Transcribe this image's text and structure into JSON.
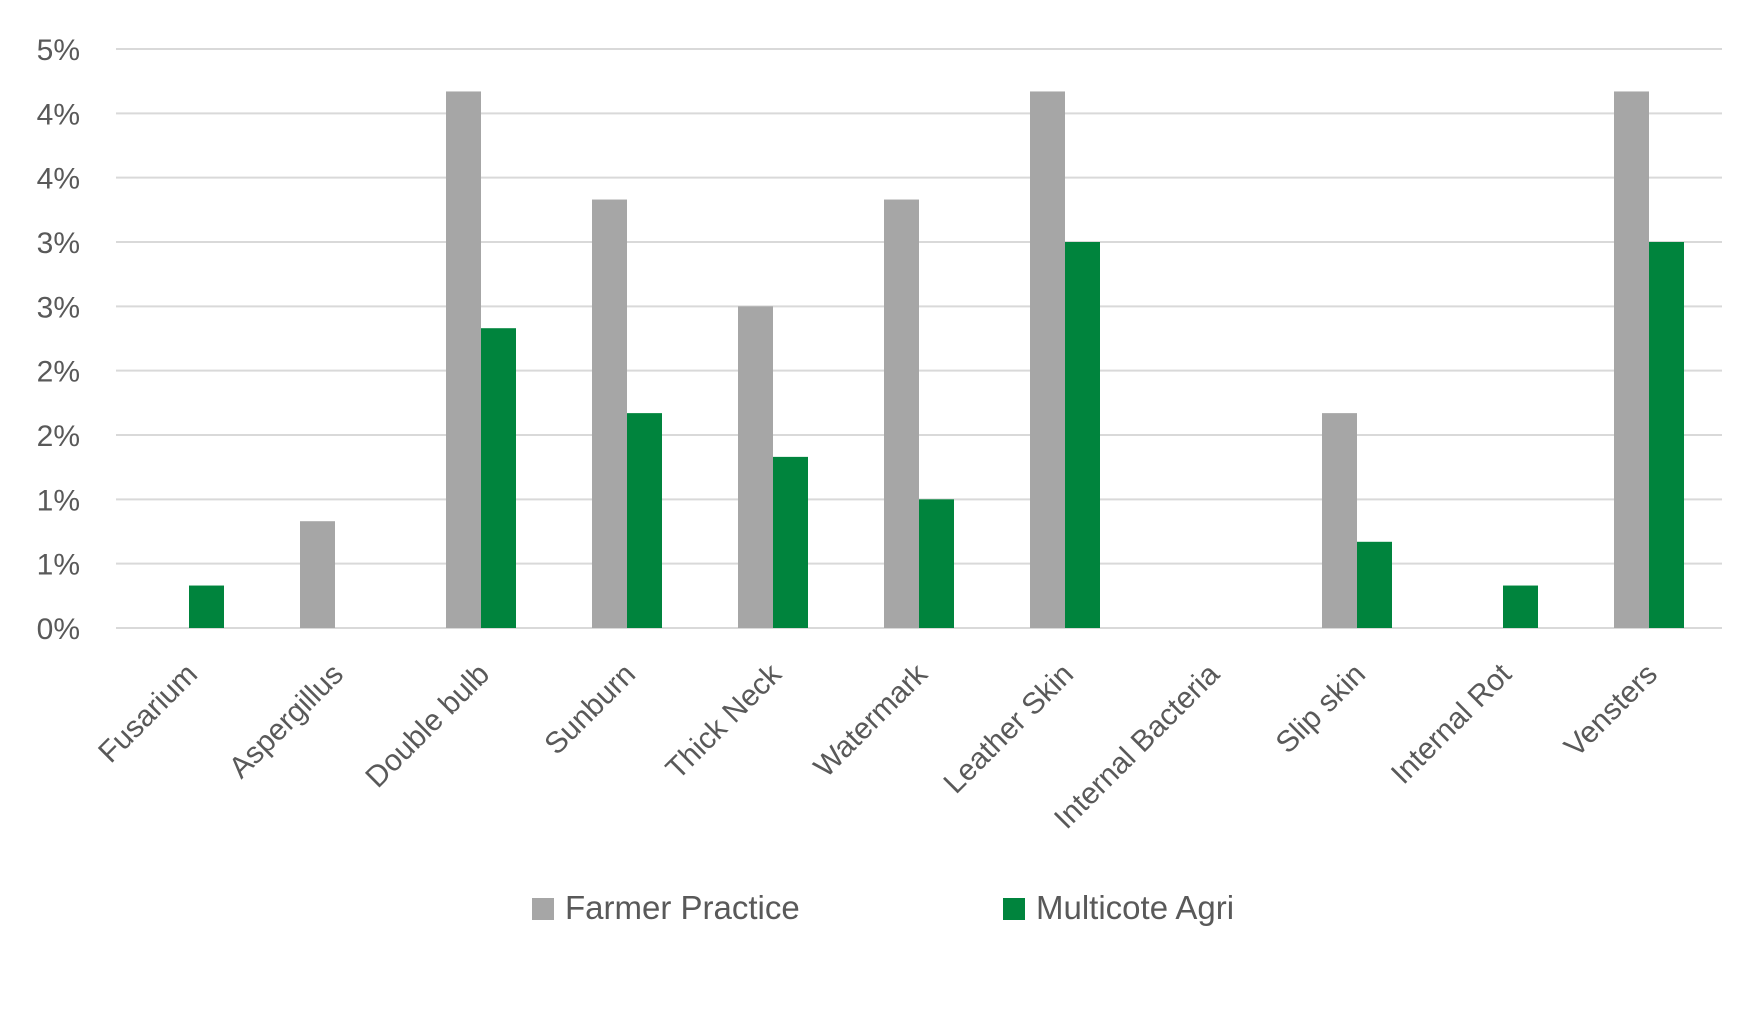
{
  "chart_data": {
    "type": "bar",
    "title": "",
    "xlabel": "",
    "ylabel": "",
    "categories": [
      "Fusarium",
      "Aspergillus",
      "Double bulb",
      "Sunburn",
      "Thick Neck",
      "Watermark",
      "Leather Skin",
      "Internal Bacteria",
      "Slip skin",
      "Internal Rot",
      "Vensters"
    ],
    "series": [
      {
        "name": "Farmer Practice",
        "color": "#a6a6a6",
        "values": [
          0,
          0.83,
          4.17,
          3.33,
          2.5,
          3.33,
          4.17,
          0,
          1.67,
          0,
          4.17
        ]
      },
      {
        "name": "Multicote Agri",
        "color": "#00843d",
        "values": [
          0.33,
          0,
          2.33,
          1.67,
          1.33,
          1.0,
          3.0,
          0,
          0.67,
          0.33,
          3.0
        ]
      }
    ],
    "ylim": [
      0,
      4.5
    ],
    "y_ticks": [
      0,
      0.5,
      1,
      1.5,
      2,
      2.5,
      3,
      3.5,
      4,
      4.5
    ],
    "y_tick_labels": [
      "0%",
      "1%",
      "1%",
      "2%",
      "2%",
      "3%",
      "3%",
      "4%",
      "4%",
      "5%"
    ],
    "grid": true,
    "legend_position": "bottom"
  }
}
